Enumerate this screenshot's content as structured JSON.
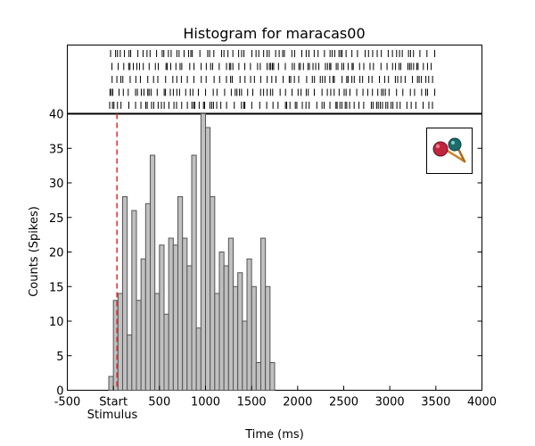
{
  "chart_data": {
    "type": "bar",
    "title": "Histogram for maracas00",
    "xlabel": "Time (ms)",
    "ylabel": "Counts (Spikes)",
    "xlim": [
      -500,
      4000
    ],
    "ylim": [
      0,
      40
    ],
    "x_ticks": [
      -500,
      0,
      500,
      1000,
      1500,
      2000,
      2500,
      3000,
      3500,
      4000
    ],
    "x_tick_labels": [
      "-500",
      "Start",
      "500",
      "1000",
      "1500",
      "2000",
      "2500",
      "3000",
      "3500",
      "4000"
    ],
    "y_ticks": [
      0,
      5,
      10,
      15,
      20,
      25,
      30,
      35,
      40
    ],
    "stimulus_label": "Stimulus",
    "stimulus_time": 0,
    "bin_width": 50,
    "bin_start": -50,
    "values": [
      2,
      13,
      14,
      28,
      8,
      26,
      13,
      19,
      27,
      34,
      14,
      21,
      11,
      22,
      21,
      28,
      22,
      18,
      34,
      9,
      40,
      38,
      28,
      14,
      20,
      18,
      22,
      15,
      17,
      10,
      19,
      15,
      4,
      22,
      15,
      4
    ],
    "raster": {
      "trials": 5,
      "t_min": -50,
      "t_max": 3500
    },
    "colors": {
      "bar_fill": "#c0c0c0",
      "bar_edge": "#555555",
      "stimulus_line": "#e8262b",
      "raster_tick": "#000000"
    },
    "legend_icon": "maracas-icon",
    "legend_placement": "top-right"
  }
}
